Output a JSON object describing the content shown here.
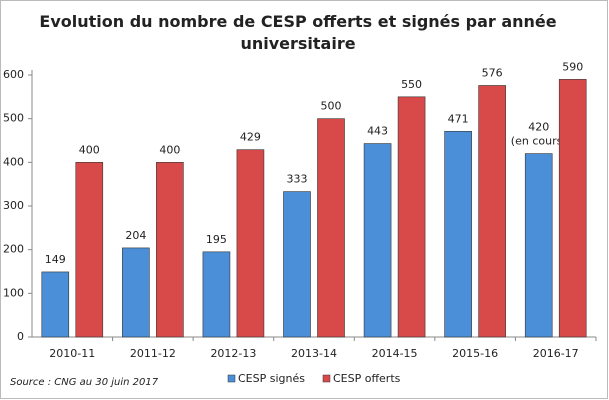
{
  "chart_data": {
    "type": "bar",
    "title": "Evolution du nombre de CESP offerts et signés par année universitaire",
    "categories": [
      "2010-11",
      "2011-12",
      "2012-13",
      "2013-14",
      "2014-15",
      "2015-16",
      "2016-17"
    ],
    "series": [
      {
        "name": "CESP signés",
        "color": "#4a8fd8",
        "values": [
          149,
          204,
          195,
          333,
          443,
          471,
          420
        ],
        "value_labels": [
          "149",
          "204",
          "195",
          "333",
          "443",
          "471",
          "420 (en cours)"
        ]
      },
      {
        "name": "CESP offerts",
        "color": "#d84a4a",
        "values": [
          400,
          400,
          429,
          500,
          550,
          576,
          590
        ]
      }
    ],
    "ylim": [
      0,
      600
    ],
    "yticks": [
      0,
      100,
      200,
      300,
      400,
      500,
      600
    ],
    "source": "Source : CNG au 30 juin 2017",
    "legend": "bottom"
  }
}
